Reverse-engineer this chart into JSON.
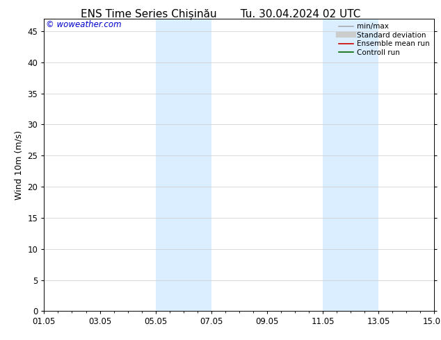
{
  "title": "ENS Time Series Chișinău       Tu. 30.04.2024 02 UTC",
  "ylabel": "Wind 10m (m/s)",
  "watermark": "© woweather.com",
  "watermark_color": "#0000cc",
  "ylim": [
    0,
    47
  ],
  "yticks": [
    0,
    5,
    10,
    15,
    20,
    25,
    30,
    35,
    40,
    45
  ],
  "xtick_labels": [
    "01.05",
    "03.05",
    "05.05",
    "07.05",
    "09.05",
    "11.05",
    "13.05",
    "15.05"
  ],
  "xtick_positions": [
    0,
    2,
    4,
    6,
    8,
    10,
    12,
    14
  ],
  "background_color": "#ffffff",
  "shaded_bands": [
    {
      "xstart": 4,
      "xend": 6
    },
    {
      "xstart": 10,
      "xend": 12
    }
  ],
  "shade_color": "#daeeff",
  "legend_items": [
    {
      "label": "min/max",
      "color": "#aaaaaa",
      "lw": 1.2
    },
    {
      "label": "Standard deviation",
      "color": "#cccccc",
      "lw": 6
    },
    {
      "label": "Ensemble mean run",
      "color": "#cc0000",
      "lw": 1.2
    },
    {
      "label": "Controll run",
      "color": "#006600",
      "lw": 1.2
    }
  ],
  "grid_color": "#cccccc",
  "title_fontsize": 11,
  "label_fontsize": 9,
  "tick_fontsize": 8.5
}
